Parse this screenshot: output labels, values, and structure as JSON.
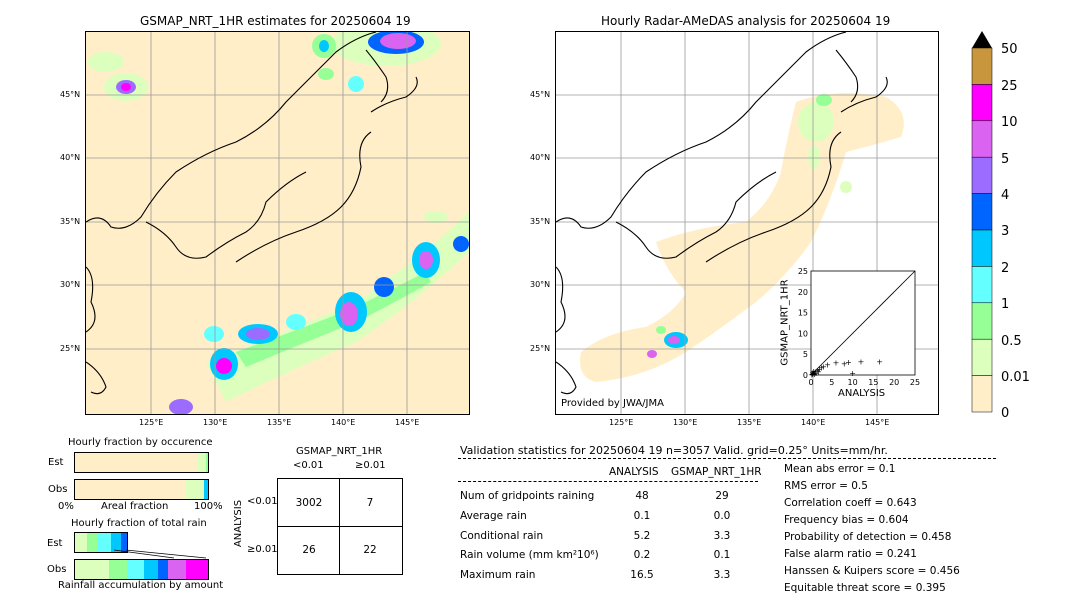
{
  "left_map": {
    "title": "GSMAP_NRT_1HR estimates for 20250604 19",
    "lat_labels": [
      "45°N",
      "40°N",
      "35°N",
      "30°N",
      "25°N"
    ],
    "lon_labels": [
      "125°E",
      "130°E",
      "135°E",
      "140°E",
      "145°E"
    ]
  },
  "right_map": {
    "title": "Hourly Radar-AMeDAS analysis for 20250604 19",
    "lat_labels": [
      "45°N",
      "40°N",
      "35°N",
      "30°N",
      "25°N"
    ],
    "lon_labels": [
      "125°E",
      "130°E",
      "135°E",
      "140°E",
      "145°E"
    ],
    "credit": "Provided by JWA/JMA"
  },
  "scatter": {
    "ylabel": "GSMAP_NRT_1HR",
    "xlabel": "ANALYSIS",
    "ticks": [
      "0",
      "5",
      "10",
      "15",
      "20",
      "25"
    ]
  },
  "colorbar": {
    "labels": [
      "50",
      "25",
      "10",
      "5",
      "4",
      "3",
      "2",
      "1",
      "0.5",
      "0.01",
      "0"
    ],
    "colors": [
      "#c8963c",
      "#ff00ff",
      "#da63f2",
      "#9b6cff",
      "#0064ff",
      "#00c8ff",
      "#64ffff",
      "#96ff96",
      "#dcffbe",
      "#ffeec8"
    ],
    "top_arrow_color": "#000000"
  },
  "occurrence": {
    "title": "Hourly fraction by occurence",
    "est_label": "Est",
    "obs_label": "Obs",
    "axis_left": "0%",
    "axis_mid": "Areal fraction",
    "axis_right": "100%"
  },
  "total_rain": {
    "title": "Hourly fraction of total rain",
    "est_label": "Est",
    "obs_label": "Obs",
    "footer": "Rainfall accumulation by amount"
  },
  "contingency": {
    "title": "GSMAP_NRT_1HR",
    "col_labels": [
      "<0.01",
      "≥0.01"
    ],
    "row_labels": [
      "<0.01",
      "≥0.01"
    ],
    "side_label": "ANALYSIS",
    "cells": [
      [
        "3002",
        "7"
      ],
      [
        "26",
        "22"
      ]
    ]
  },
  "validation": {
    "header": "Validation statistics for 20250604 19  n=3057 Valid. grid=0.25° Units=mm/hr.",
    "col_analysis": "ANALYSIS",
    "col_gsmap": "GSMAP_NRT_1HR",
    "rows": [
      {
        "label": "Num of gridpoints raining",
        "analysis": "48",
        "gsmap": "29"
      },
      {
        "label": "Average rain",
        "analysis": "0.1",
        "gsmap": "0.0"
      },
      {
        "label": "Conditional rain",
        "analysis": "5.2",
        "gsmap": "3.3"
      },
      {
        "label": "Rain volume (mm km²10⁶)",
        "analysis": "0.2",
        "gsmap": "0.1"
      },
      {
        "label": "Maximum rain",
        "analysis": "16.5",
        "gsmap": "3.3"
      }
    ],
    "scores": [
      "Mean abs error =    0.1",
      "RMS error =    0.5",
      "Correlation coeff =  0.643",
      "Frequency bias =  0.604",
      "Probability of detection =  0.458",
      "False alarm ratio =  0.241",
      "Hanssen & Kuipers score =  0.456",
      "Equitable threat score =  0.395"
    ]
  },
  "chart_data": [
    {
      "type": "scatter",
      "title": "",
      "xlabel": "ANALYSIS",
      "ylabel": "GSMAP_NRT_1HR",
      "xlim": [
        0,
        25
      ],
      "ylim": [
        0,
        25
      ],
      "points": [
        [
          0.3,
          0.2
        ],
        [
          0.5,
          0.4
        ],
        [
          0.8,
          0.3
        ],
        [
          1,
          0.8
        ],
        [
          1.2,
          0.5
        ],
        [
          1.5,
          1.2
        ],
        [
          2,
          1.5
        ],
        [
          2.5,
          1.8
        ],
        [
          3,
          2
        ],
        [
          0.6,
          1
        ],
        [
          1.8,
          0.9
        ],
        [
          4,
          2.5
        ],
        [
          6,
          3
        ],
        [
          8,
          2.8
        ],
        [
          9,
          3.1
        ],
        [
          12,
          3.3
        ],
        [
          16.5,
          3.2
        ],
        [
          10,
          0.5
        ],
        [
          0.2,
          0.1
        ],
        [
          0.4,
          0.6
        ]
      ]
    },
    {
      "type": "table",
      "title": "GSMAP_NRT_1HR",
      "categories": [
        "<0.01",
        "≥0.01"
      ],
      "series": [
        {
          "name": "<0.01",
          "values": [
            3002,
            7
          ]
        },
        {
          "name": "≥0.01",
          "values": [
            26,
            22
          ]
        }
      ]
    }
  ]
}
